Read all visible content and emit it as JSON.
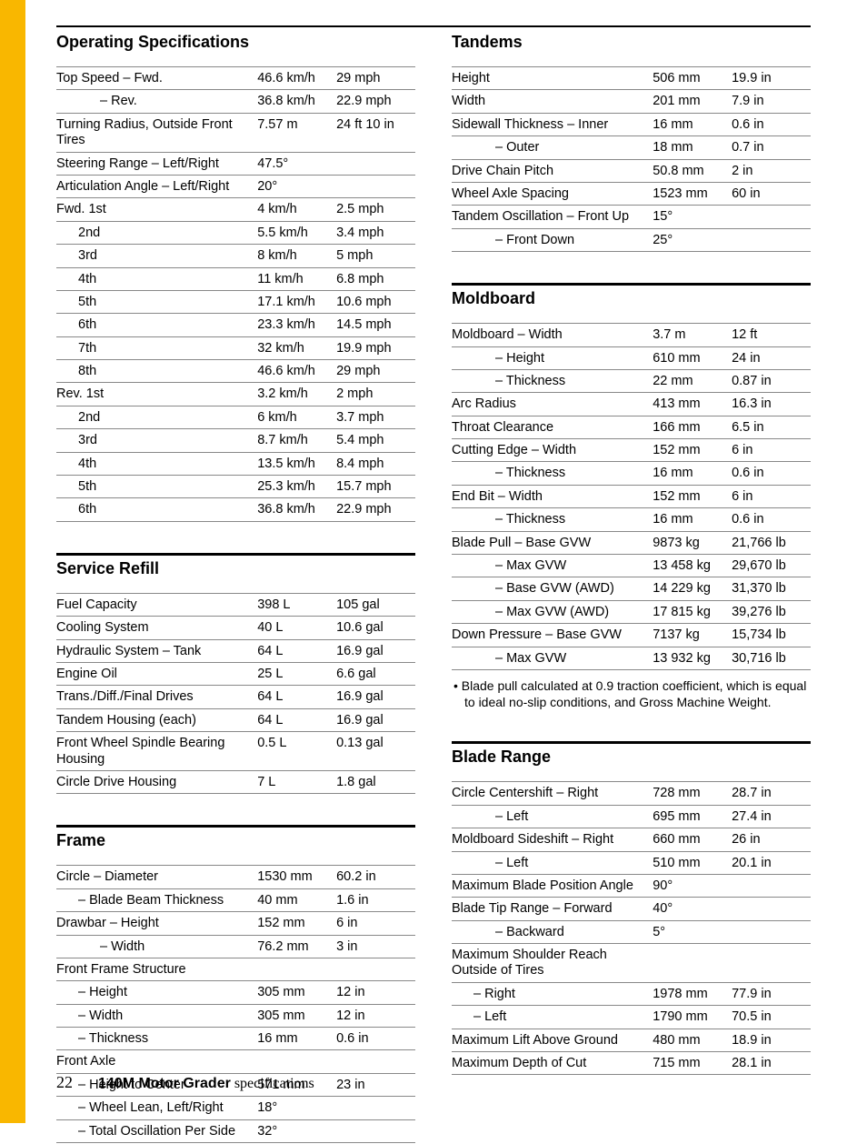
{
  "operating_specifications": {
    "title": "Operating Specifications",
    "rows": [
      {
        "label": "Top Speed – Fwd.",
        "v1": "46.6 km/h",
        "v2": "29 mph",
        "indent": 0
      },
      {
        "label": "– Rev.",
        "v1": "36.8 km/h",
        "v2": "22.9 mph",
        "indent": 2
      },
      {
        "label": "Turning Radius, Outside Front Tires",
        "v1": "7.57 m",
        "v2": "24 ft 10 in",
        "indent": 0
      },
      {
        "label": "Steering Range – Left/Right",
        "v1": "47.5°",
        "v2": "",
        "indent": 0
      },
      {
        "label": "Articulation Angle – Left/Right",
        "v1": "20°",
        "v2": "",
        "indent": 0
      },
      {
        "label": "Fwd. 1st",
        "v1": "4 km/h",
        "v2": "2.5 mph",
        "indent": 0
      },
      {
        "label": "2nd",
        "v1": "5.5 km/h",
        "v2": "3.4 mph",
        "indent": 1
      },
      {
        "label": "3rd",
        "v1": "8 km/h",
        "v2": "5 mph",
        "indent": 1
      },
      {
        "label": "4th",
        "v1": "11 km/h",
        "v2": "6.8 mph",
        "indent": 1
      },
      {
        "label": "5th",
        "v1": "17.1 km/h",
        "v2": "10.6 mph",
        "indent": 1
      },
      {
        "label": "6th",
        "v1": "23.3 km/h",
        "v2": "14.5 mph",
        "indent": 1
      },
      {
        "label": "7th",
        "v1": "32 km/h",
        "v2": "19.9 mph",
        "indent": 1
      },
      {
        "label": "8th",
        "v1": "46.6 km/h",
        "v2": "29 mph",
        "indent": 1
      },
      {
        "label": "Rev. 1st",
        "v1": "3.2 km/h",
        "v2": "2 mph",
        "indent": 0
      },
      {
        "label": "2nd",
        "v1": "6 km/h",
        "v2": "3.7 mph",
        "indent": 1
      },
      {
        "label": "3rd",
        "v1": "8.7 km/h",
        "v2": "5.4 mph",
        "indent": 1
      },
      {
        "label": "4th",
        "v1": "13.5 km/h",
        "v2": "8.4 mph",
        "indent": 1
      },
      {
        "label": "5th",
        "v1": "25.3 km/h",
        "v2": "15.7 mph",
        "indent": 1
      },
      {
        "label": "6th",
        "v1": "36.8 km/h",
        "v2": "22.9 mph",
        "indent": 1
      }
    ]
  },
  "service_refill": {
    "title": "Service Refill",
    "rows": [
      {
        "label": "Fuel Capacity",
        "v1": "398 L",
        "v2": "105 gal",
        "indent": 0
      },
      {
        "label": "Cooling System",
        "v1": "40 L",
        "v2": "10.6 gal",
        "indent": 0
      },
      {
        "label": "Hydraulic System – Tank",
        "v1": "64 L",
        "v2": "16.9 gal",
        "indent": 0
      },
      {
        "label": "Engine Oil",
        "v1": "25 L",
        "v2": "6.6 gal",
        "indent": 0
      },
      {
        "label": "Trans./Diff./Final Drives",
        "v1": "64 L",
        "v2": "16.9 gal",
        "indent": 0
      },
      {
        "label": "Tandem Housing (each)",
        "v1": "64 L",
        "v2": "16.9 gal",
        "indent": 0
      },
      {
        "label": "Front Wheel Spindle Bearing Housing",
        "v1": "0.5 L",
        "v2": "0.13 gal",
        "indent": 0
      },
      {
        "label": "Circle Drive Housing",
        "v1": "7 L",
        "v2": "1.8 gal",
        "indent": 0
      }
    ]
  },
  "frame": {
    "title": "Frame",
    "rows": [
      {
        "label": "Circle – Diameter",
        "v1": "1530 mm",
        "v2": "60.2 in",
        "indent": 0
      },
      {
        "label": "– Blade Beam Thickness",
        "v1": "40 mm",
        "v2": "1.6 in",
        "indent": 1
      },
      {
        "label": "Drawbar – Height",
        "v1": "152 mm",
        "v2": "6 in",
        "indent": 0
      },
      {
        "label": "– Width",
        "v1": "76.2 mm",
        "v2": "3 in",
        "indent": 2
      },
      {
        "label": "Front Frame Structure",
        "v1": "",
        "v2": "",
        "indent": 0
      },
      {
        "label": "– Height",
        "v1": "305 mm",
        "v2": "12 in",
        "indent": 1
      },
      {
        "label": "– Width",
        "v1": "305 mm",
        "v2": "12 in",
        "indent": 1
      },
      {
        "label": "– Thickness",
        "v1": "16 mm",
        "v2": "0.6 in",
        "indent": 1
      },
      {
        "label": "Front Axle",
        "v1": "",
        "v2": "",
        "indent": 0
      },
      {
        "label": "– Height to Center",
        "v1": "571 mm",
        "v2": "23 in",
        "indent": 1
      },
      {
        "label": "– Wheel Lean, Left/Right",
        "v1": "18°",
        "v2": "",
        "indent": 1
      },
      {
        "label": "– Total Oscillation Per Side",
        "v1": "32°",
        "v2": "",
        "indent": 1
      }
    ]
  },
  "tandems": {
    "title": "Tandems",
    "rows": [
      {
        "label": "Height",
        "v1": "506 mm",
        "v2": "19.9 in",
        "indent": 0
      },
      {
        "label": "Width",
        "v1": "201 mm",
        "v2": "7.9 in",
        "indent": 0
      },
      {
        "label": "Sidewall Thickness – Inner",
        "v1": "16 mm",
        "v2": "0.6 in",
        "indent": 0
      },
      {
        "label": "– Outer",
        "v1": "18 mm",
        "v2": "0.7 in",
        "indent": 2
      },
      {
        "label": "Drive Chain Pitch",
        "v1": "50.8 mm",
        "v2": "2 in",
        "indent": 0
      },
      {
        "label": "Wheel Axle Spacing",
        "v1": "1523 mm",
        "v2": "60 in",
        "indent": 0
      },
      {
        "label": "Tandem Oscillation – Front Up",
        "v1": "15°",
        "v2": "",
        "indent": 0
      },
      {
        "label": "– Front Down",
        "v1": "25°",
        "v2": "",
        "indent": 2
      }
    ]
  },
  "moldboard": {
    "title": "Moldboard",
    "rows": [
      {
        "label": "Moldboard – Width",
        "v1": "3.7 m",
        "v2": "12 ft",
        "indent": 0
      },
      {
        "label": "– Height",
        "v1": "610 mm",
        "v2": "24 in",
        "indent": 2
      },
      {
        "label": "– Thickness",
        "v1": "22 mm",
        "v2": "0.87 in",
        "indent": 2
      },
      {
        "label": "Arc Radius",
        "v1": "413 mm",
        "v2": "16.3 in",
        "indent": 0
      },
      {
        "label": "Throat Clearance",
        "v1": "166 mm",
        "v2": "6.5 in",
        "indent": 0
      },
      {
        "label": "Cutting Edge – Width",
        "v1": "152 mm",
        "v2": "6 in",
        "indent": 0
      },
      {
        "label": "– Thickness",
        "v1": "16 mm",
        "v2": "0.6 in",
        "indent": 2
      },
      {
        "label": "End Bit – Width",
        "v1": "152 mm",
        "v2": "6 in",
        "indent": 0
      },
      {
        "label": "– Thickness",
        "v1": "16 mm",
        "v2": "0.6 in",
        "indent": 2
      },
      {
        "label": "Blade Pull – Base GVW",
        "v1": "9873 kg",
        "v2": "21,766 lb",
        "indent": 0
      },
      {
        "label": "– Max GVW",
        "v1": "13 458 kg",
        "v2": "29,670 lb",
        "indent": 2
      },
      {
        "label": "– Base GVW (AWD)",
        "v1": "14 229 kg",
        "v2": "31,370 lb",
        "indent": 2
      },
      {
        "label": "– Max GVW (AWD)",
        "v1": "17 815 kg",
        "v2": "39,276 lb",
        "indent": 2
      },
      {
        "label": "Down Pressure – Base GVW",
        "v1": "7137 kg",
        "v2": "15,734 lb",
        "indent": 0
      },
      {
        "label": "– Max GVW",
        "v1": "13 932 kg",
        "v2": "30,716 lb",
        "indent": 2
      }
    ],
    "footnote": "• Blade pull calculated at 0.9 traction coefficient, which is equal to ideal no-slip conditions, and Gross Machine Weight."
  },
  "blade_range": {
    "title": "Blade Range",
    "rows": [
      {
        "label": "Circle Centershift – Right",
        "v1": "728 mm",
        "v2": "28.7 in",
        "indent": 0
      },
      {
        "label": "– Left",
        "v1": "695 mm",
        "v2": "27.4 in",
        "indent": 2
      },
      {
        "label": "Moldboard Sideshift – Right",
        "v1": "660 mm",
        "v2": "26 in",
        "indent": 0
      },
      {
        "label": "– Left",
        "v1": "510 mm",
        "v2": "20.1 in",
        "indent": 2
      },
      {
        "label": "Maximum Blade Position Angle",
        "v1": "90°",
        "v2": "",
        "indent": 0
      },
      {
        "label": "Blade Tip Range – Forward",
        "v1": "40°",
        "v2": "",
        "indent": 0
      },
      {
        "label": "– Backward",
        "v1": "5°",
        "v2": "",
        "indent": 2
      },
      {
        "label": "Maximum Shoulder Reach Outside of Tires",
        "v1": "",
        "v2": "",
        "indent": 0
      },
      {
        "label": "– Right",
        "v1": "1978 mm",
        "v2": "77.9 in",
        "indent": 1
      },
      {
        "label": "– Left",
        "v1": "1790 mm",
        "v2": "70.5 in",
        "indent": 1
      },
      {
        "label": "Maximum Lift Above Ground",
        "v1": "480 mm",
        "v2": "18.9 in",
        "indent": 0
      },
      {
        "label": "Maximum Depth of Cut",
        "v1": "715 mm",
        "v2": "28.1 in",
        "indent": 0
      }
    ]
  },
  "footer": {
    "page": "22",
    "product": "140M Motor Grader",
    "suffix": " specifications"
  }
}
